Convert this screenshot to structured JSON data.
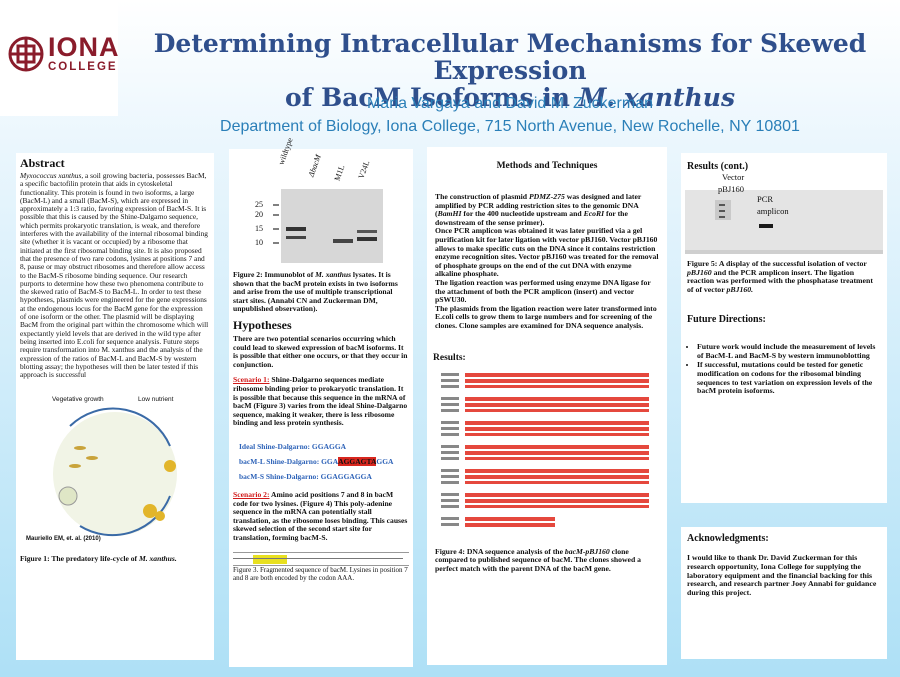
{
  "header": {
    "logo": {
      "line1": "IONA",
      "line2": "COLLEGE"
    },
    "title_line1": "Determining Intracellular Mechanisms for Skewed Expression",
    "title_line2_a": "of BacM Isoforms in ",
    "title_line2_b": "M. xanthus",
    "authors": "Maria Vargaya and David M. Zuckerman",
    "department": "Department of Biology, Iona College, 715 North Avenue, New Rochelle, NY 10801"
  },
  "abstract": {
    "heading": "Abstract",
    "lead": "Myxococcus xanthus",
    "body": ", a soil growing bacteria, possesses BacM, a specific bactofilin protein that aids in cytoskeletal functionality. This protein is found in two isoforms, a large (BacM-L) and a small (BacM-S), which are expressed in approximately a 1:3 ratio, favoring expression of BacM-S. It is possible that this is caused by the Shine-Dalgarno sequence, which permits prokaryotic translation, is weak, and therefore interferes with the availability of the internal ribosomal binding site (whether it is vacant or occupied) by a ribosome that initiated at the first ribosomal binding site. It is also proposed that the presence of two rare codons, lysines at positions 7 and 8, pause or may obstruct ribosomes and therefore allow access to the BacM-S ribosome binding sequence. Our research purports to determine how these two phenomena contribute to the skewed ratio of BacM-S to BacM-L. In order to test these hypotheses, plasmids were engineered for the gene expressions at the endogenous locus for the BacM gene for the expression of one isoform or the other. The plasmid will be displaying BacM from the original part within the chromosome which will expectantly yield levels that are derived in the wild type after being inserted into E.coli for sequence analysis. Future steps require transformation into M. xanthus and the analysis of the expression of the ratios of BacM-L and BacM-S by western blotting assay; the hypotheses will then be later tested if this approach is successful",
    "lifecycle": {
      "vegetative": "Vegetative growth",
      "low_nutrient": "Low nutrient",
      "citation": "Mauriello EM, et. al. (2010)"
    },
    "figure1_caption_a": "Figure 1: The predatory life-cycle of ",
    "figure1_caption_b": "M. xanthus."
  },
  "blot": {
    "lanes": [
      "wildtype",
      "ΔbacM",
      "M1L",
      "V24L"
    ],
    "markers": [
      "25",
      "20",
      "15",
      "10"
    ],
    "caption_a": "Figure 2: Immunoblot of ",
    "caption_b": "M. xanthus",
    "caption_c": " lysates. It is shown that the bacM protein exists in two isoforms and arise from the use of multiple transcriptional start sites. (Annabi CN and Zuckerman DM, unpublished observation)."
  },
  "hypotheses": {
    "heading": "Hypotheses",
    "intro": "There are two potential scenarios occurring which could lead to skewed expression of bacM isoforms. It is possible that either one occurs, or that they occur in conjunction.",
    "s1_label": "Scenario 1:",
    "s1_text": " Shine-Dalgarno sequences mediate ribosome binding prior to prokaryotic translation. It is possible that because this sequence in the mRNA of bacM (Figure 3) varies from the ideal Shine-Dalgarno sequence, making it weaker, there is less ribosome binding and less protein synthesis.",
    "seq_ideal": "Ideal Shine-Dalgarno: GGAGGA",
    "seq_l_pre": "bacM-L Shine-Dalgarno: GGA",
    "seq_l_hl": "AGGAGTA",
    "seq_l_post": "GGA",
    "seq_s": "bacM-S Shine-Dalgarno: GGAGGAGGA",
    "s2_label": "Scenario 2:",
    "s2_text": " Amino acid positions 7 and 8 in bacM code for two lysines. (Figure 4) This poly-adenine sequence in the mRNA can potentially stall translation, as the ribosome loses binding. This causes skewed selection of the second start site for translation, forming bacM-S.",
    "fig3_caption": "Figure 3. Fragmented sequence of bacM. Lysines in position 7 and 8 are both encoded by the codon AAA."
  },
  "methods": {
    "heading": "Methods and Techniques",
    "p1_a": "The construction of plasmid ",
    "p1_b": "PDMZ-275",
    "p1_c": " was designed and later amplified by PCR adding restriction sites to the genomic DNA (",
    "p1_d": "BamHI",
    "p1_e": " for the 400 nucleotide upstream and ",
    "p1_f": "EcoRI",
    "p1_g": " for the downstream of the sense primer).",
    "p2": "Once PCR amplicon was obtained it was later purified via a gel purification kit for later ligation with vector pBJ160. Vector pBJ160 allows to make specific cuts on the DNA since it contains restriction enzyme recognition sites. Vector pBJ160 was treated for the removal of phosphate groups on the end of the cut DNA with enzyme alkaline phosphate.",
    "p3": "The ligation reaction was performed using enzyme DNA ligase for the attachment of both the PCR amplicon (insert) and vector pSWU30.",
    "p4": "The plasmids from the ligation reaction were later transformed into E.coli cells to grow them to large numbers and for screening of the clones. Clone samples are examined for DNA sequence analysis.",
    "results_heading": "Results:",
    "fig4_caption_a": "Figure 4: DNA sequence analysis of the ",
    "fig4_caption_b": "bacM-pBJ160",
    "fig4_caption_c": " clone compared to published sequence of bacM. The clones showed a perfect match with the parent DNA of the bacM gene."
  },
  "results_cont": {
    "heading": "Results (cont.)",
    "label_vector": "Vector",
    "label_pbj": "pBJ160",
    "label_pcr": "PCR",
    "label_amplicon": "amplicon",
    "fig5_caption_a": "Figure 5: A display of the successful isolation of vector ",
    "fig5_caption_b": "pBJ160",
    "fig5_caption_c": " and the PCR amplicon insert. The ligation reaction was performed with the phosphatase treatment of of vector ",
    "fig5_caption_d": "pBJ160.",
    "future_heading": "Future Directions:",
    "future_items": [
      "Future work would include the measurement of levels of BacM-L and BacM-S by western immunoblotting",
      "If successful, mutations could be tested for genetic modification on codons for the ribosomal binding sequences to test variation on expression levels of the bacM protein isoforms."
    ]
  },
  "acknowledgments": {
    "heading": "Acknowledgments:",
    "text": "I would like to thank Dr. David Zuckerman for this research opportunity, Iona College for supplying the laboratory equipment and the financial backing for this research, and research partner Joey Annabi for guidance during this project."
  },
  "colors": {
    "title": "#2f4f8c",
    "subtitle": "#2a7fb8",
    "logo": "#8a1c2b",
    "scenario": "#d11a1a",
    "sequence": "#2e63b8"
  }
}
